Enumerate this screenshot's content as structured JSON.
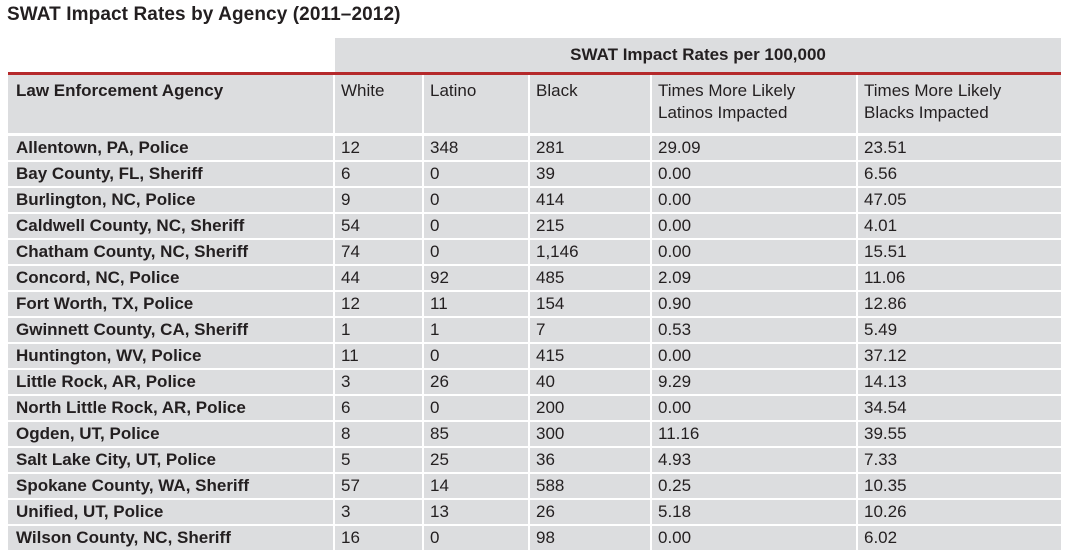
{
  "title": "SWAT Impact Rates by Agency (2011–2012)",
  "table": {
    "super_header": "SWAT Impact Rates per 100,000",
    "columns": [
      "Law Enforcement Agency",
      "White",
      "Latino",
      "Black",
      "Times More Likely Latinos Impacted",
      "Times More Likely Blacks Impacted"
    ],
    "rows": [
      [
        "Allentown, PA, Police",
        "12",
        "348",
        "281",
        "29.09",
        "23.51"
      ],
      [
        "Bay County, FL, Sheriff",
        "6",
        "0",
        "39",
        "0.00",
        "6.56"
      ],
      [
        "Burlington, NC, Police",
        "9",
        "0",
        "414",
        "0.00",
        "47.05"
      ],
      [
        "Caldwell County, NC, Sheriff",
        "54",
        "0",
        "215",
        "0.00",
        "4.01"
      ],
      [
        "Chatham County, NC, Sheriff",
        "74",
        "0",
        "1,146",
        "0.00",
        "15.51"
      ],
      [
        "Concord, NC, Police",
        "44",
        "92",
        "485",
        "2.09",
        "11.06"
      ],
      [
        "Fort Worth, TX, Police",
        "12",
        "11",
        "154",
        "0.90",
        "12.86"
      ],
      [
        "Gwinnett County, CA, Sheriff",
        "1",
        "1",
        "7",
        "0.53",
        "5.49"
      ],
      [
        "Huntington, WV, Police",
        "11",
        "0",
        "415",
        "0.00",
        "37.12"
      ],
      [
        "Little Rock, AR, Police",
        "3",
        "26",
        "40",
        "9.29",
        "14.13"
      ],
      [
        "North Little Rock, AR, Police",
        "6",
        "0",
        "200",
        "0.00",
        "34.54"
      ],
      [
        "Ogden, UT, Police",
        "8",
        "85",
        "300",
        "11.16",
        "39.55"
      ],
      [
        "Salt Lake City, UT, Police",
        "5",
        "25",
        "36",
        "4.93",
        "7.33"
      ],
      [
        "Spokane County, WA, Sheriff",
        "57",
        "14",
        "588",
        "0.25",
        "10.35"
      ],
      [
        "Unified, UT, Police",
        "3",
        "13",
        "26",
        "5.18",
        "10.26"
      ],
      [
        "Wilson County, NC, Sheriff",
        "16",
        "0",
        "98",
        "0.00",
        "6.02"
      ]
    ]
  },
  "colors": {
    "cell_background": "#dcdddf",
    "accent_rule": "#b5292b",
    "text": "#231f20"
  }
}
